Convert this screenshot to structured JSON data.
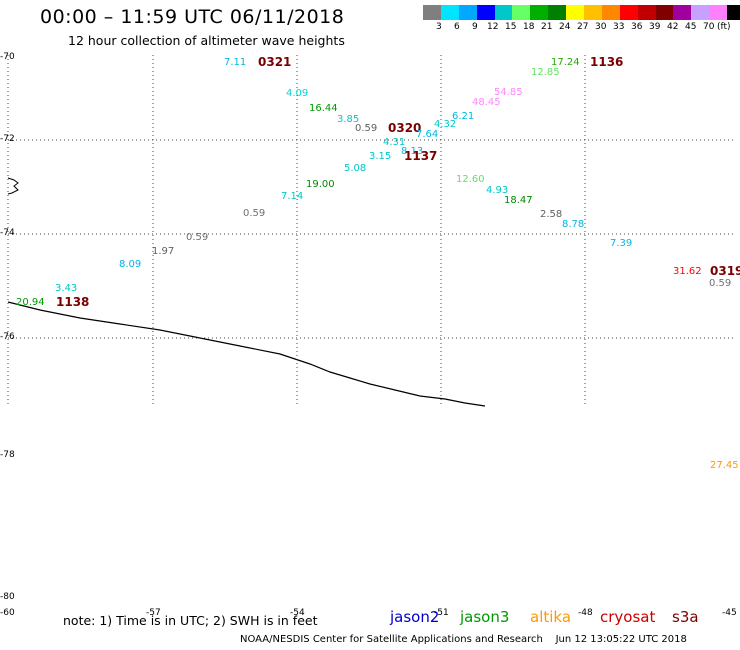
{
  "header": {
    "title": "00:00 – 11:59 UTC 06/11/2018",
    "subtitle": "12 hour collection of altimeter wave heights"
  },
  "legend": {
    "colors": [
      "#7f7f7f",
      "#00e5ff",
      "#00a8ff",
      "#0000ff",
      "#00c8c8",
      "#66ff66",
      "#00b000",
      "#008000",
      "#ffff00",
      "#ffc000",
      "#ff8800",
      "#ff0000",
      "#c00000",
      "#800000",
      "#a000a0",
      "#c8a0ff",
      "#ff80ff",
      "#000000"
    ],
    "labels": [
      "3",
      "6",
      "9",
      "12",
      "15",
      "18",
      "21",
      "24",
      "27",
      "30",
      "33",
      "36",
      "39",
      "42",
      "45",
      "70",
      "(ft)"
    ]
  },
  "latitude_labels": [
    "-70",
    "-72",
    "-74",
    "-76",
    "-78",
    "-80"
  ],
  "longitude_labels": [
    "-60",
    "-57",
    "-54",
    "-51",
    "-48",
    "-45"
  ],
  "observations": [
    {
      "text": "7.11",
      "color": "#00b7e6"
    },
    {
      "text": "0321",
      "color": "#800000",
      "pass": true
    },
    {
      "text": "17.24",
      "color": "#2aa800"
    },
    {
      "text": "1136",
      "color": "#800000",
      "pass": true
    },
    {
      "text": "12.85",
      "color": "#66e066"
    },
    {
      "text": "4.09",
      "color": "#00d6d6"
    },
    {
      "text": "54.85",
      "color": "#ff88ff"
    },
    {
      "text": "16.44",
      "color": "#009900"
    },
    {
      "text": "48.45",
      "color": "#ff88ff"
    },
    {
      "text": "3.85",
      "color": "#00c8c8"
    },
    {
      "text": "6.21",
      "color": "#00b7e6"
    },
    {
      "text": "0.59",
      "color": "#606060"
    },
    {
      "text": "0320",
      "color": "#800000",
      "pass": true
    },
    {
      "text": "4.32",
      "color": "#00c8c8"
    },
    {
      "text": "7.64",
      "color": "#00b7e6"
    },
    {
      "text": "4.31",
      "color": "#00c8c8"
    },
    {
      "text": "3.15",
      "color": "#00c8c8"
    },
    {
      "text": "8.13",
      "color": "#00b7e6"
    },
    {
      "text": "1137",
      "color": "#800000",
      "pass": true
    },
    {
      "text": "5.08",
      "color": "#00c8c8"
    },
    {
      "text": "12.60",
      "color": "#66e066"
    },
    {
      "text": "19.00",
      "color": "#008800"
    },
    {
      "text": "4.93",
      "color": "#00c8c8"
    },
    {
      "text": "7.14",
      "color": "#00c8c8"
    },
    {
      "text": "18.47",
      "color": "#008800"
    },
    {
      "text": "0.59",
      "color": "#707070"
    },
    {
      "text": "2.58",
      "color": "#606060"
    },
    {
      "text": "8.78",
      "color": "#00b7e6"
    },
    {
      "text": "0.59",
      "color": "#707070"
    },
    {
      "text": "1.97",
      "color": "#606060"
    },
    {
      "text": "7.39",
      "color": "#00b7e6"
    },
    {
      "text": "8.09",
      "color": "#00b7e6"
    },
    {
      "text": "31.62",
      "color": "#ff0000"
    },
    {
      "text": "0319",
      "color": "#800000",
      "pass": true
    },
    {
      "text": "3.43",
      "color": "#00c8c8"
    },
    {
      "text": "0.59",
      "color": "#707070"
    },
    {
      "text": "20.94",
      "color": "#009900"
    },
    {
      "text": "1138",
      "color": "#800000",
      "pass": true
    },
    {
      "text": "27.45",
      "color": "#ff9900"
    }
  ],
  "footer": {
    "note": "note: 1) Time is in UTC; 2) SWH is in feet",
    "satellites": [
      {
        "name": "jason2",
        "color": "#0000cc"
      },
      {
        "name": "jason3",
        "color": "#009900"
      },
      {
        "name": "altika",
        "color": "#ff9900"
      },
      {
        "name": "cryosat",
        "color": "#cc0000"
      },
      {
        "name": "s3a",
        "color": "#800000"
      }
    ],
    "credit": "NOAA/NESDIS Center for Satellite Applications and Research",
    "timestamp": "Jun 12 13:05:22 UTC 2018"
  }
}
